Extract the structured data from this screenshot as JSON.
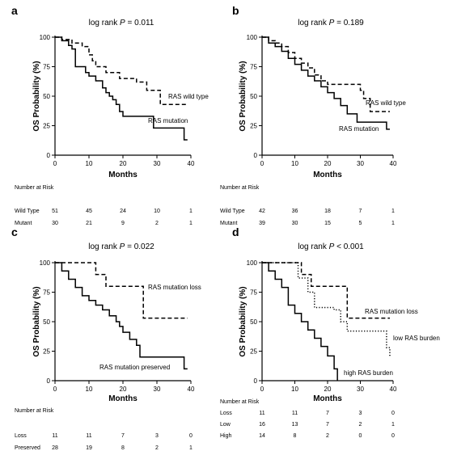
{
  "chart_data": [
    {
      "panel": "a",
      "type": "line",
      "subtype": "kaplan-meier",
      "title_prefix": "log rank ",
      "title_p": "P",
      "title_suffix": " = 0.011",
      "xlabel": "Months",
      "ylabel": "OS Probability (%)",
      "xlim": [
        0,
        40
      ],
      "ylim": [
        0,
        100
      ],
      "xticks": [
        0,
        10,
        20,
        30,
        40
      ],
      "yticks": [
        0,
        25,
        50,
        75,
        100
      ],
      "series": [
        {
          "name": "RAS wild type",
          "style": "dashed",
          "x": [
            0,
            2,
            5,
            8,
            10,
            11,
            12,
            15,
            19,
            24,
            27,
            31,
            39
          ],
          "y": [
            100,
            98,
            95,
            92,
            85,
            80,
            75,
            70,
            65,
            62,
            55,
            43,
            43
          ]
        },
        {
          "name": "RAS mutation",
          "style": "solid",
          "x": [
            0,
            2,
            4,
            5,
            6,
            9,
            10,
            12,
            14,
            15,
            16,
            17,
            18,
            19,
            20,
            29,
            38,
            39
          ],
          "y": [
            100,
            97,
            93,
            90,
            75,
            70,
            67,
            63,
            57,
            53,
            50,
            47,
            43,
            37,
            33,
            23,
            13,
            13
          ]
        }
      ],
      "risk_table": {
        "header": "Number at Risk",
        "rows": [
          {
            "label": "Wild Type",
            "values": [
              "51",
              "45",
              "24",
              "10",
              "1"
            ]
          },
          {
            "label": "Mutant",
            "values": [
              "30",
              "21",
              "9",
              "2",
              "1"
            ]
          }
        ]
      }
    },
    {
      "panel": "b",
      "type": "line",
      "subtype": "kaplan-meier",
      "title_prefix": "log rank ",
      "title_p": "P",
      "title_suffix": " = 0.189",
      "xlabel": "Months",
      "ylabel": "OS Probability (%)",
      "xlim": [
        0,
        40
      ],
      "ylim": [
        0,
        100
      ],
      "xticks": [
        0,
        10,
        20,
        30,
        40
      ],
      "yticks": [
        0,
        25,
        50,
        75,
        100
      ],
      "series": [
        {
          "name": "RAS wild type",
          "style": "dashed",
          "x": [
            0,
            2,
            4,
            6,
            8,
            10,
            12,
            14,
            16,
            18,
            20,
            24,
            30,
            31,
            33,
            39
          ],
          "y": [
            100,
            97,
            95,
            92,
            87,
            82,
            78,
            74,
            68,
            63,
            60,
            60,
            55,
            48,
            37,
            37
          ]
        },
        {
          "name": "RAS mutation",
          "style": "solid",
          "x": [
            0,
            2,
            4,
            6,
            8,
            10,
            12,
            14,
            16,
            18,
            20,
            22,
            24,
            26,
            29,
            38,
            39
          ],
          "y": [
            100,
            95,
            92,
            88,
            82,
            77,
            72,
            67,
            63,
            58,
            53,
            48,
            42,
            35,
            28,
            22,
            22
          ]
        }
      ],
      "risk_table": {
        "header": "Number at Risk",
        "rows": [
          {
            "label": "Wild Type",
            "values": [
              "42",
              "36",
              "18",
              "7",
              "1"
            ]
          },
          {
            "label": "Mutant",
            "values": [
              "39",
              "30",
              "15",
              "5",
              "1"
            ]
          }
        ]
      }
    },
    {
      "panel": "c",
      "type": "line",
      "subtype": "kaplan-meier",
      "title_prefix": "log rank ",
      "title_p": "P",
      "title_suffix": " = 0.022",
      "xlabel": "Months",
      "ylabel": "OS Probability (%)",
      "xlim": [
        0,
        40
      ],
      "ylim": [
        0,
        100
      ],
      "xticks": [
        0,
        10,
        20,
        30,
        40
      ],
      "yticks": [
        0,
        25,
        50,
        75,
        100
      ],
      "series": [
        {
          "name": "RAS mutation loss",
          "style": "dashed",
          "x": [
            0,
            9,
            12,
            15,
            25,
            26,
            39
          ],
          "y": [
            100,
            100,
            90,
            80,
            80,
            53,
            53
          ]
        },
        {
          "name": "RAS mutation preserved",
          "style": "solid",
          "x": [
            0,
            2,
            4,
            6,
            8,
            10,
            12,
            14,
            16,
            18,
            19,
            20,
            22,
            24,
            25,
            38,
            39
          ],
          "y": [
            100,
            93,
            86,
            79,
            72,
            68,
            64,
            60,
            55,
            50,
            46,
            41,
            35,
            30,
            20,
            10,
            10
          ]
        }
      ],
      "risk_table": {
        "header": "Number at Risk",
        "rows": [
          {
            "label": "Loss",
            "values": [
              "11",
              "11",
              "7",
              "3",
              "0"
            ]
          },
          {
            "label": "Preserved",
            "values": [
              "28",
              "19",
              "8",
              "2",
              "1"
            ]
          }
        ]
      }
    },
    {
      "panel": "d",
      "type": "line",
      "subtype": "kaplan-meier",
      "title_prefix": "log rank ",
      "title_p": "P",
      "title_suffix": " < 0.001",
      "xlabel": "Months",
      "ylabel": "OS Probability (%)",
      "xlim": [
        0,
        40
      ],
      "ylim": [
        0,
        100
      ],
      "xticks": [
        0,
        10,
        20,
        30,
        40
      ],
      "yticks": [
        0,
        25,
        50,
        75,
        100
      ],
      "series": [
        {
          "name": "RAS mutation loss",
          "style": "dashed",
          "x": [
            0,
            9,
            12,
            15,
            25,
            26,
            39
          ],
          "y": [
            100,
            100,
            90,
            80,
            80,
            53,
            53
          ]
        },
        {
          "name": "low RAS burden",
          "style": "dotted",
          "x": [
            0,
            9,
            11,
            14,
            16,
            22,
            24,
            26,
            38,
            39
          ],
          "y": [
            100,
            100,
            87,
            75,
            62,
            60,
            50,
            42,
            28,
            20
          ]
        },
        {
          "name": "high RAS burden",
          "style": "solid",
          "x": [
            0,
            2,
            4,
            6,
            8,
            10,
            12,
            14,
            16,
            18,
            20,
            22,
            23
          ],
          "y": [
            100,
            93,
            86,
            79,
            64,
            57,
            50,
            43,
            36,
            29,
            21,
            10,
            0
          ]
        }
      ],
      "risk_table": {
        "header": "Number at Risk",
        "rows": [
          {
            "label": "Loss",
            "values": [
              "11",
              "11",
              "7",
              "3",
              "0"
            ]
          },
          {
            "label": "Low",
            "values": [
              "16",
              "13",
              "7",
              "2",
              "1"
            ]
          },
          {
            "label": "High",
            "values": [
              "14",
              "8",
              "2",
              "0",
              "0"
            ]
          }
        ]
      }
    }
  ]
}
